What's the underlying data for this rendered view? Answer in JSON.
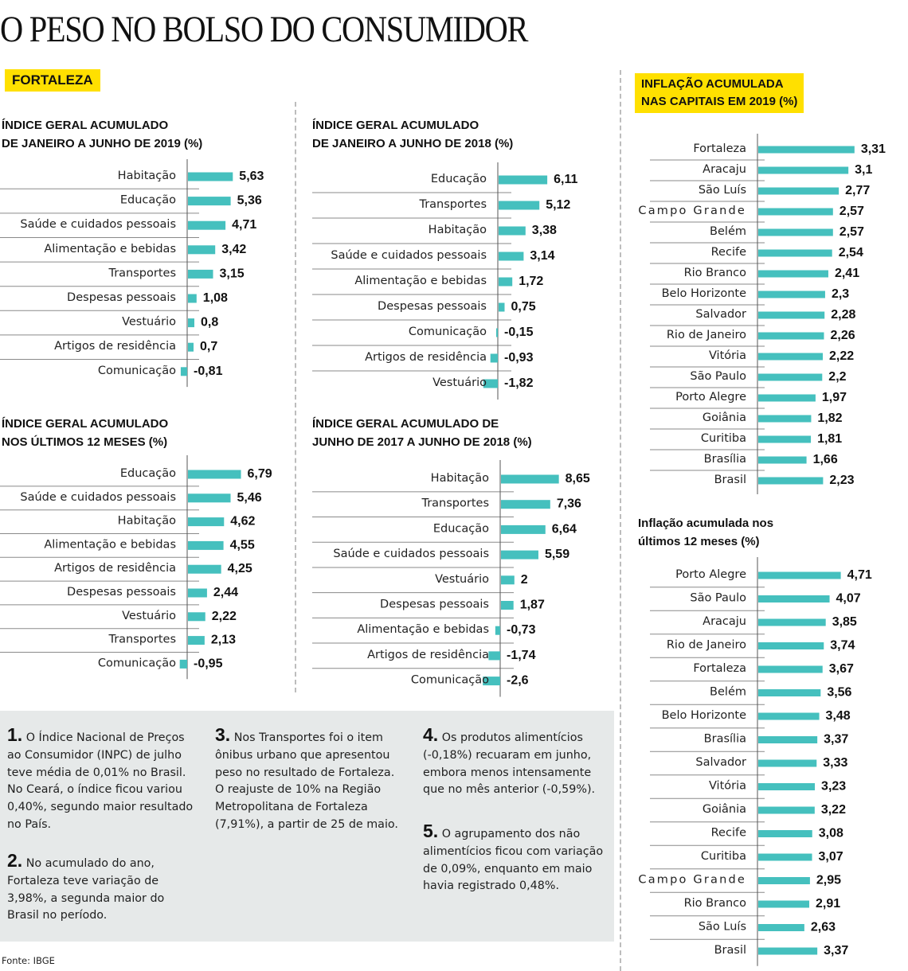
{
  "title": "O PESO NO BOLSO DO CONSUMIDOR",
  "section_tag": "FORTALEZA",
  "capitals_tag": [
    "INFLAÇÃO ACUMULADA",
    "NAS CAPITAIS EM 2019 (%)"
  ],
  "colors": {
    "bar": "#45c0be",
    "tag": "#ffe000",
    "notes_bg": "#e6e9e9",
    "axis": "#555555",
    "separator": "#bdbdbd"
  },
  "chart_data": [
    {
      "id": "fortaleza-jan-jun-2019",
      "type": "bar",
      "orientation": "horizontal",
      "title": [
        "ÍNDICE GERAL ACUMULADO",
        "DE JANEIRO A JUNHO DE 2019 (%)"
      ],
      "categories": [
        "Habitação",
        "Educação",
        "Saúde e cuidados pessoais",
        "Alimentação e bebidas",
        "Transportes",
        "Despesas pessoais",
        "Vestuário",
        "Artigos de residência",
        "Comunicação"
      ],
      "values": [
        5.63,
        5.36,
        4.71,
        3.42,
        3.15,
        1.08,
        0.8,
        0.7,
        -0.81
      ],
      "labels": [
        "5,63",
        "5,36",
        "4,71",
        "3,42",
        "3,15",
        "1,08",
        "0,8",
        "0,7",
        "-0,81"
      ]
    },
    {
      "id": "fortaleza-jan-jun-2018",
      "type": "bar",
      "orientation": "horizontal",
      "title": [
        "ÍNDICE GERAL ACUMULADO",
        "DE JANEIRO A JUNHO DE 2018 (%)"
      ],
      "categories": [
        "Educação",
        "Transportes",
        "Habitação",
        "Saúde e cuidados pessoais",
        "Alimentação e bebidas",
        "Despesas pessoais",
        "Comunicação",
        "Artigos de residência",
        "Vestuário"
      ],
      "values": [
        6.11,
        5.12,
        3.38,
        3.14,
        1.72,
        0.75,
        -0.15,
        -0.93,
        -1.82
      ],
      "labels": [
        "6,11",
        "5,12",
        "3,38",
        "3,14",
        "1,72",
        "0,75",
        "-0,15",
        "-0,93",
        "-1,82"
      ]
    },
    {
      "id": "fortaleza-12-meses",
      "type": "bar",
      "orientation": "horizontal",
      "title": [
        "ÍNDICE GERAL ACUMULADO",
        "NOS ÚLTIMOS 12 MESES (%)"
      ],
      "categories": [
        "Educação",
        "Saúde e cuidados pessoais",
        "Habitação",
        "Alimentação e bebidas",
        "Artigos de residência",
        "Despesas pessoais",
        "Vestuário",
        "Transportes",
        "Comunicação"
      ],
      "values": [
        6.79,
        5.46,
        4.62,
        4.55,
        4.25,
        2.44,
        2.22,
        2.13,
        -0.95
      ],
      "labels": [
        "6,79",
        "5,46",
        "4,62",
        "4,55",
        "4,25",
        "2,44",
        "2,22",
        "2,13",
        "-0,95"
      ]
    },
    {
      "id": "fortaleza-jun2017-jun2018",
      "type": "bar",
      "orientation": "horizontal",
      "title": [
        "ÍNDICE GERAL ACUMULADO DE",
        "JUNHO DE 2017 A JUNHO DE 2018 (%)"
      ],
      "categories": [
        "Habitação",
        "Transportes",
        "Educação",
        "Saúde e cuidados pessoais",
        "Vestuário",
        "Despesas pessoais",
        "Alimentação e bebidas",
        "Artigos de residência",
        "Comunicação"
      ],
      "values": [
        8.65,
        7.36,
        6.64,
        5.59,
        2,
        1.87,
        -0.73,
        -1.74,
        -2.6
      ],
      "labels": [
        "8,65",
        "7,36",
        "6,64",
        "5,59",
        "2",
        "1,87",
        "-0,73",
        "-1,74",
        "-2,6"
      ]
    },
    {
      "id": "capitais-2019",
      "type": "bar",
      "orientation": "horizontal",
      "title": [
        "INFLAÇÃO ACUMULADA",
        "NAS CAPITAIS EM 2019 (%)"
      ],
      "categories": [
        "Fortaleza",
        "Aracaju",
        "São Luís",
        "Campo Grande",
        "Belém",
        "Recife",
        "Rio Branco",
        "Belo Horizonte",
        "Salvador",
        "Rio de Janeiro",
        "Vitória",
        "São Paulo",
        "Porto Alegre",
        "Goiânia",
        "Curitiba",
        "Brasília",
        "Brasil"
      ],
      "values": [
        3.31,
        3.1,
        2.77,
        2.57,
        2.57,
        2.54,
        2.41,
        2.3,
        2.28,
        2.26,
        2.22,
        2.2,
        1.97,
        1.82,
        1.81,
        1.66,
        2.23
      ],
      "labels": [
        "3,31",
        "3,1",
        "2,77",
        "2,57",
        "2,57",
        "2,54",
        "2,41",
        "2,3",
        "2,28",
        "2,26",
        "2,22",
        "2,2",
        "1,97",
        "1,82",
        "1,81",
        "1,66",
        "2,23"
      ]
    },
    {
      "id": "capitais-12-meses",
      "type": "bar",
      "orientation": "horizontal",
      "title": [
        "Inflação acumulada nos",
        "últimos 12 meses (%)"
      ],
      "categories": [
        "Porto Alegre",
        "São Paulo",
        "Aracaju",
        "Rio de Janeiro",
        "Fortaleza",
        "Belém",
        "Belo Horizonte",
        "Brasília",
        "Salvador",
        "Vitória",
        "Goiânia",
        "Recife",
        "Curitiba",
        "Campo Grande",
        "Rio Branco",
        "São Luís",
        "Brasil"
      ],
      "values": [
        4.71,
        4.07,
        3.85,
        3.74,
        3.67,
        3.56,
        3.48,
        3.37,
        3.33,
        3.23,
        3.22,
        3.08,
        3.07,
        2.95,
        2.91,
        2.63,
        3.37
      ],
      "labels": [
        "4,71",
        "4,07",
        "3,85",
        "3,74",
        "3,67",
        "3,56",
        "3,48",
        "3,37",
        "3,33",
        "3,23",
        "3,22",
        "3,08",
        "3,07",
        "2,95",
        "2,91",
        "2,63",
        "3,37"
      ]
    }
  ],
  "notes": [
    {
      "num": "1.",
      "text": "O Índice Nacional de Preços ao Consumidor (INPC) de julho teve média de 0,01% no Brasil. No Ceará, o índice ficou variou 0,40%, segundo maior resultado no País."
    },
    {
      "num": "2.",
      "text": "No acumulado do ano, Fortaleza teve variação de 3,98%, a segunda maior do Brasil no período."
    },
    {
      "num": "3.",
      "text": "Nos Transportes foi o item ônibus urbano que apresentou peso no resultado de Fortaleza. O reajuste de 10% na Região Metropolitana de Fortaleza (7,91%), a partir de 25 de maio."
    },
    {
      "num": "4.",
      "text": "Os produtos alimentícios (-0,18%) recuaram em junho, embora menos intensamente que no mês anterior (-0,59%)."
    },
    {
      "num": "5.",
      "text": "O agrupamento dos não alimentícios ficou com variação de 0,09%, enquanto em maio havia registrado 0,48%."
    }
  ],
  "source": "Fonte: IBGE"
}
